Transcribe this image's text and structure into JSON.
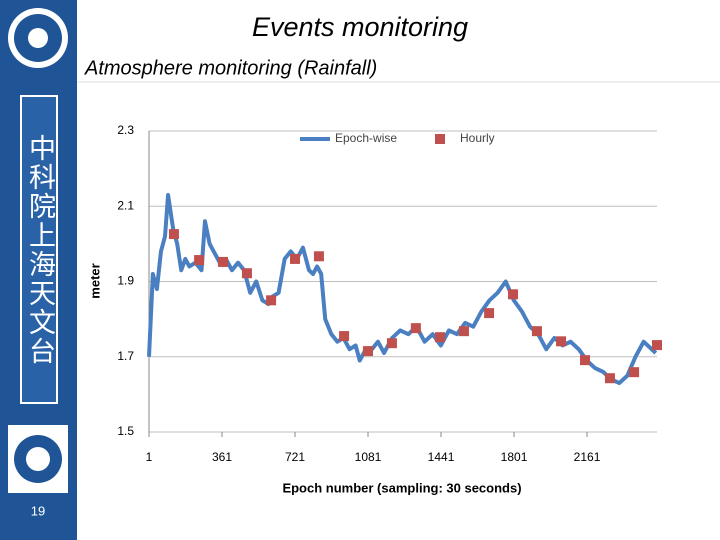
{
  "slide": {
    "title": "Events monitoring",
    "subtitle": "Atmosphere monitoring (Rainfall)",
    "sidebar_text": "中科院上海天文台",
    "page_number": "19"
  },
  "chart_data": {
    "type": "line",
    "xlabel": "Epoch number (sampling: 30 seconds)",
    "ylabel": "meter",
    "xlim": [
      1,
      2506
    ],
    "xticks": [
      1,
      361,
      721,
      1081,
      1441,
      1801,
      2161
    ],
    "ylim": [
      1.5,
      2.3
    ],
    "yticks": [
      1.5,
      1.7,
      1.9,
      2.1,
      2.3
    ],
    "grid": true,
    "legend": "top",
    "series": [
      {
        "name": "Epoch-wise",
        "color": "#4a7fc1",
        "type": "line",
        "x": [
          1,
          20,
          40,
          60,
          80,
          95,
          120,
          140,
          160,
          180,
          200,
          230,
          260,
          277,
          300,
          320,
          350,
          380,
          410,
          440,
          470,
          500,
          530,
          560,
          590,
          610,
          640,
          670,
          700,
          730,
          760,
          790,
          810,
          830,
          850,
          870,
          900,
          930,
          960,
          990,
          1020,
          1040,
          1070,
          1100,
          1130,
          1160,
          1200,
          1240,
          1280,
          1320,
          1360,
          1400,
          1440,
          1480,
          1520,
          1560,
          1600,
          1640,
          1680,
          1720,
          1760,
          1800,
          1840,
          1880,
          1920,
          1960,
          2000,
          2040,
          2080,
          2120,
          2160,
          2200,
          2240,
          2280,
          2320,
          2360,
          2400,
          2440,
          2480,
          2500
        ],
        "values": [
          1.7,
          1.92,
          1.88,
          1.98,
          2.02,
          2.13,
          2.04,
          2.0,
          1.93,
          1.96,
          1.94,
          1.95,
          1.93,
          2.06,
          2.0,
          1.98,
          1.95,
          1.96,
          1.93,
          1.95,
          1.93,
          1.87,
          1.9,
          1.85,
          1.84,
          1.86,
          1.87,
          1.96,
          1.98,
          1.96,
          1.99,
          1.93,
          1.92,
          1.94,
          1.92,
          1.8,
          1.76,
          1.74,
          1.75,
          1.72,
          1.73,
          1.69,
          1.72,
          1.72,
          1.74,
          1.71,
          1.75,
          1.77,
          1.76,
          1.78,
          1.74,
          1.76,
          1.73,
          1.77,
          1.76,
          1.79,
          1.78,
          1.82,
          1.85,
          1.87,
          1.9,
          1.85,
          1.82,
          1.78,
          1.76,
          1.72,
          1.75,
          1.73,
          1.74,
          1.72,
          1.69,
          1.67,
          1.66,
          1.64,
          1.63,
          1.65,
          1.7,
          1.74,
          1.72,
          1.71
        ]
      },
      {
        "name": "Hourly",
        "color": "#c0504d",
        "type": "scatter",
        "x": [
          124,
          248,
          366,
          484,
          603,
          721,
          839,
          963,
          1081,
          1199,
          1317,
          1436,
          1554,
          1678,
          1796,
          1914,
          2033,
          2151,
          2274,
          2393,
          2506
        ],
        "values": [
          2.026,
          1.957,
          1.952,
          1.922,
          1.85,
          1.96,
          1.967,
          1.755,
          1.715,
          1.736,
          1.776,
          1.752,
          1.768,
          1.816,
          1.866,
          1.768,
          1.741,
          1.691,
          1.643,
          1.659,
          1.731
        ]
      }
    ]
  }
}
